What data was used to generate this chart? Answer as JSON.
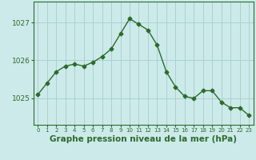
{
  "hours": [
    0,
    1,
    2,
    3,
    4,
    5,
    6,
    7,
    8,
    9,
    10,
    11,
    12,
    13,
    14,
    15,
    16,
    17,
    18,
    19,
    20,
    21,
    22,
    23
  ],
  "pressure": [
    1025.1,
    1025.4,
    1025.7,
    1025.85,
    1025.9,
    1025.85,
    1025.95,
    1026.1,
    1026.3,
    1026.7,
    1027.1,
    1026.95,
    1026.8,
    1026.4,
    1025.7,
    1025.3,
    1025.05,
    1025.0,
    1025.2,
    1025.2,
    1024.9,
    1024.75,
    1024.75,
    1024.55
  ],
  "line_color": "#2d6a2d",
  "marker": "D",
  "marker_size": 2.5,
  "bg_color": "#cdeaea",
  "grid_color": "#aad0d0",
  "axis_color": "#2d6a2d",
  "xlabel": "Graphe pression niveau de la mer (hPa)",
  "xlabel_fontsize": 7.5,
  "ylim_min": 1024.3,
  "ylim_max": 1027.55,
  "ytick_values": [
    1025,
    1026,
    1027
  ],
  "xtick_labels": [
    "0",
    "1",
    "2",
    "3",
    "4",
    "5",
    "6",
    "7",
    "8",
    "9",
    "10",
    "11",
    "12",
    "13",
    "14",
    "15",
    "16",
    "17",
    "18",
    "19",
    "20",
    "21",
    "22",
    "23"
  ]
}
